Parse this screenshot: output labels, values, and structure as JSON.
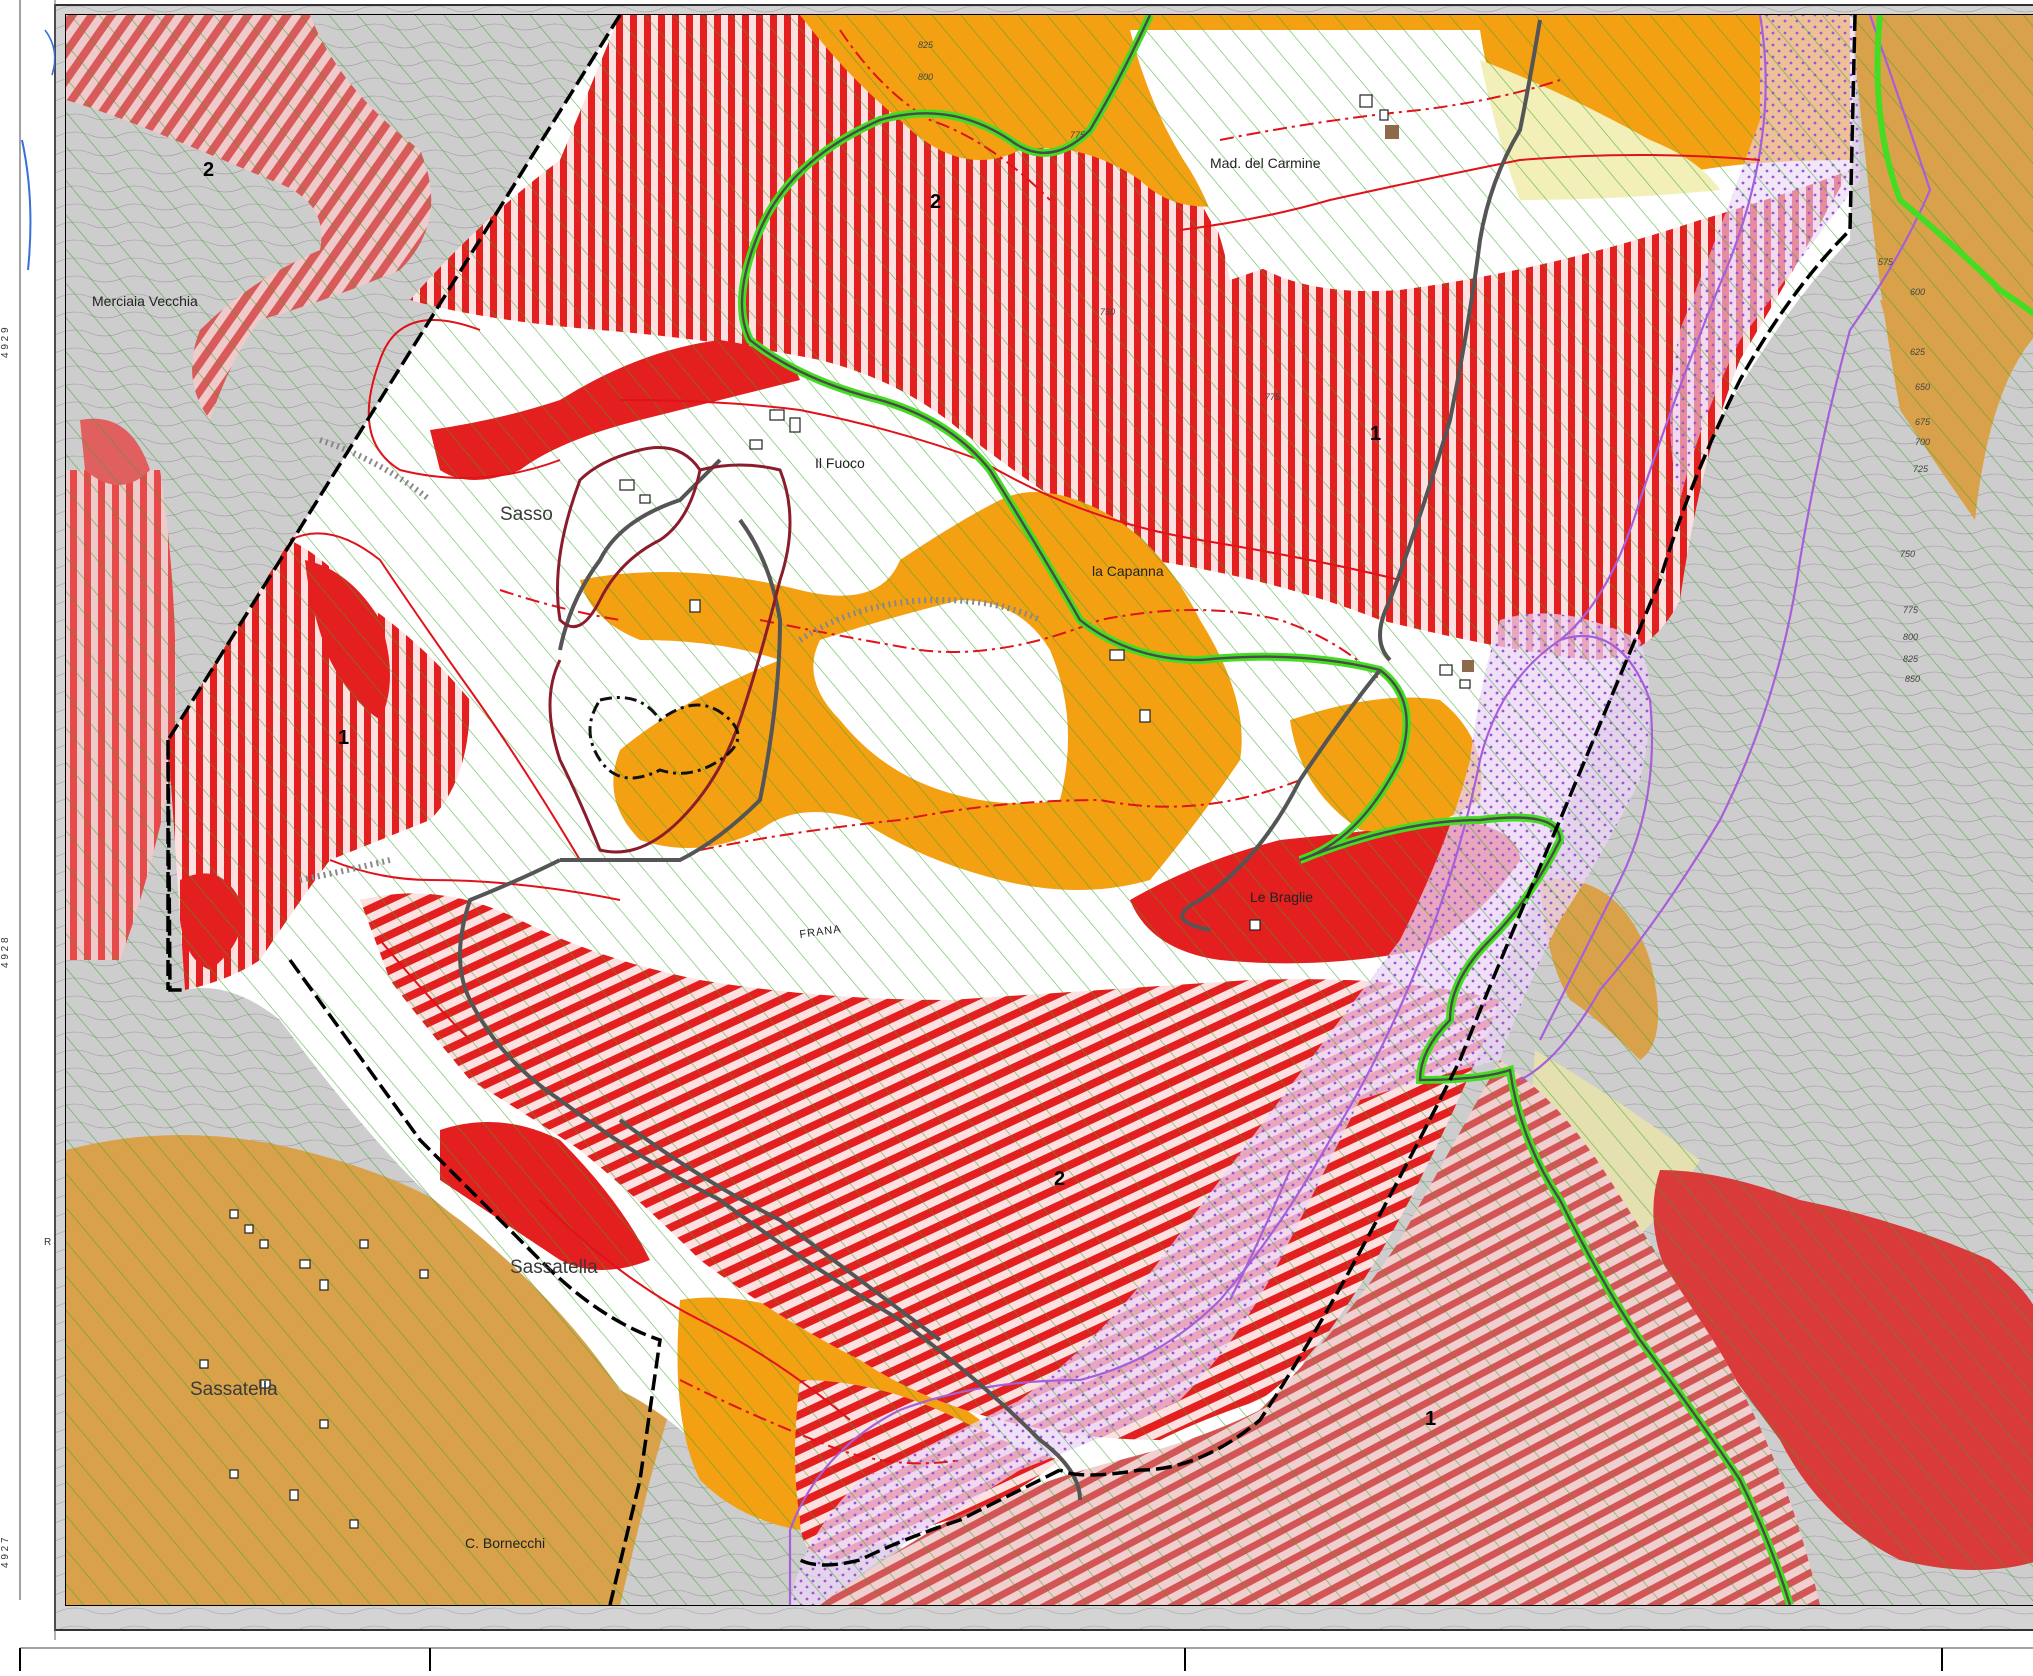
{
  "map": {
    "zone_labels": [
      "2",
      "2",
      "1",
      "1",
      "2",
      "1"
    ],
    "place_names": [
      "Sasso",
      "Il Fuoco",
      "la Capanna",
      "Le Braglie",
      "Sassatella",
      "Sassatella",
      "Merciaia Vecchia",
      "Mad. del Carmine",
      "C. Bornecchi",
      "FRANA"
    ],
    "contour_labels": [
      "825",
      "800",
      "775",
      "775",
      "750",
      "575",
      "600",
      "625",
      "650",
      "675",
      "700",
      "725",
      "750",
      "775",
      "800",
      "825",
      "850"
    ],
    "left_margin_labels": [
      "4 9 2 9",
      "4 9 2 8",
      "4 9 2 7",
      "R"
    ],
    "colors": {
      "high_hazard_red": "#e41f1f",
      "landslide_red": "#d93a3a",
      "active_orange": "#f3a113",
      "quiescent_tan": "#d9a24a",
      "grey_deposit": "#cfcfcf",
      "pale_yellow": "#f2efb8",
      "pale_olive": "#e4e0b0",
      "green_road": "#44dd22",
      "dark_road": "#555555",
      "purple_outline": "#a65fd8",
      "hatch_green": "#3aa52a",
      "frame_black": "#000000"
    },
    "icons": {
      "church": "church-icon",
      "scarp": "scarp-tick-line"
    }
  }
}
